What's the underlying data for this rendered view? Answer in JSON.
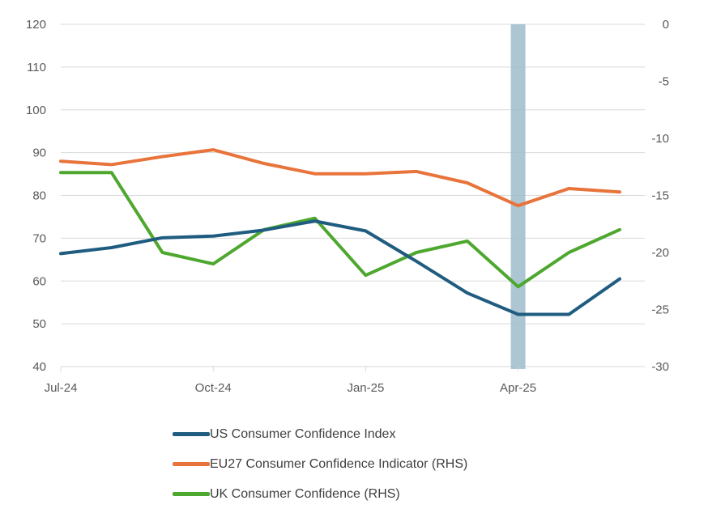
{
  "chart_data": {
    "type": "line",
    "x": [
      "Jul-24",
      "Aug-24",
      "Sep-24",
      "Oct-24",
      "Nov-24",
      "Dec-24",
      "Jan-25",
      "Feb-25",
      "Mar-25",
      "Apr-25",
      "May-25",
      "Jun-25"
    ],
    "x_tick_labels": [
      "Jul-24",
      "Oct-24",
      "Jan-25",
      "Apr-25"
    ],
    "y_left": {
      "min": 40,
      "max": 120,
      "ticks": [
        "120",
        "110",
        "100",
        "90",
        "80",
        "70",
        "60",
        "50",
        "40"
      ]
    },
    "y_right": {
      "min": -30,
      "max": 0,
      "ticks": [
        "0",
        "-5",
        "-10",
        "-15",
        "-20",
        "-25",
        "-30"
      ]
    },
    "highlight": {
      "x": "Apr-25"
    },
    "series": [
      {
        "name": "US Consumer Confidence Index",
        "axis": "left",
        "color": "#1f5c80",
        "values": [
          66.4,
          67.8,
          70.1,
          70.5,
          71.9,
          74.0,
          71.7,
          64.6,
          57.2,
          52.2,
          52.2,
          60.5
        ]
      },
      {
        "name": "EU27 Consumer Confidence Indicator (RHS)",
        "axis": "right",
        "color": "#e8743b",
        "values": [
          -12.0,
          -12.3,
          -11.6,
          -11.0,
          -12.2,
          -13.1,
          -13.1,
          -12.9,
          -13.9,
          -15.9,
          -14.4,
          -14.7
        ]
      },
      {
        "name": "UK Consumer Confidence (RHS)",
        "axis": "right",
        "color": "#4ea72e",
        "values": [
          -13.0,
          -13.0,
          -20.0,
          -21.0,
          -18.0,
          -17.0,
          -22.0,
          -20.0,
          -19.0,
          -23.0,
          -20.0,
          -18.0
        ]
      }
    ]
  }
}
